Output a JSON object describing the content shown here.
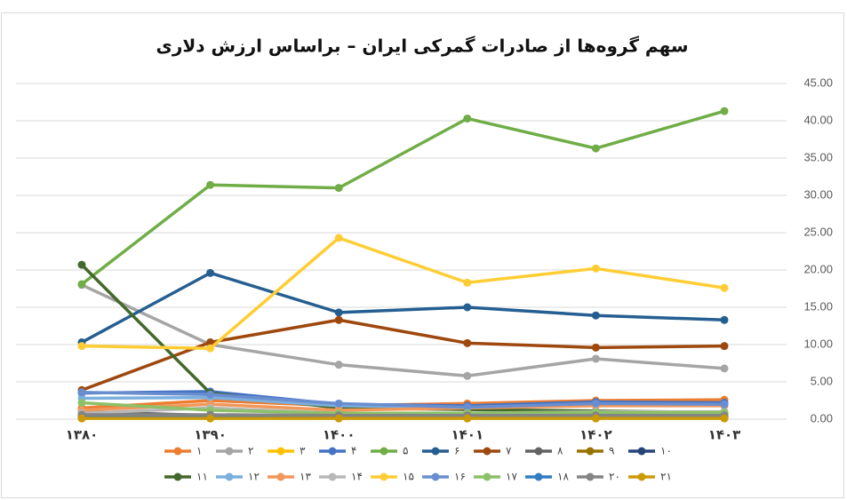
{
  "chart_data": {
    "type": "line",
    "title": "سهم گروه‌ها از صادرات گمرکی ایران – براساس ارزش دلاری",
    "categories": [
      "۱۳۸۰",
      "۱۳۹۰",
      "۱۴۰۰",
      "۱۴۰۱",
      "۱۴۰۲",
      "۱۴۰۳"
    ],
    "ylim": [
      0,
      45
    ],
    "yticks": [
      {
        "value": 0,
        "label": "0.00"
      },
      {
        "value": 5,
        "label": "5.00"
      },
      {
        "value": 10,
        "label": "10.00"
      },
      {
        "value": 15,
        "label": "15.00"
      },
      {
        "value": 20,
        "label": "20.00"
      },
      {
        "value": 25,
        "label": "25.00"
      },
      {
        "value": 30,
        "label": "30.00"
      },
      {
        "value": 35,
        "label": "35.00"
      },
      {
        "value": 40,
        "label": "40.00"
      },
      {
        "value": 45,
        "label": "45.00"
      }
    ],
    "grid": true,
    "series": [
      {
        "name": "۱",
        "color": "#ED7D31",
        "values": [
          1.5,
          2.5,
          1.8,
          2.1,
          2.5,
          2.6
        ]
      },
      {
        "name": "۲",
        "color": "#A5A5A5",
        "values": [
          18.0,
          10.0,
          7.3,
          5.8,
          8.1,
          6.8
        ]
      },
      {
        "name": "۳",
        "color": "#FFC000",
        "values": [
          0.5,
          0.4,
          0.3,
          0.3,
          0.3,
          0.3
        ]
      },
      {
        "name": "۴",
        "color": "#4472C4",
        "values": [
          3.5,
          3.7,
          2.0,
          1.8,
          2.3,
          2.2
        ]
      },
      {
        "name": "۵",
        "color": "#70AD47",
        "values": [
          18.1,
          31.4,
          31.0,
          40.3,
          36.3,
          41.3
        ]
      },
      {
        "name": "۶",
        "color": "#255E91",
        "values": [
          10.3,
          19.6,
          14.3,
          15.0,
          13.9,
          13.3
        ]
      },
      {
        "name": "۷",
        "color": "#9E480E",
        "values": [
          3.9,
          10.3,
          13.3,
          10.2,
          9.6,
          9.8
        ]
      },
      {
        "name": "۸",
        "color": "#636363",
        "values": [
          1.0,
          0.5,
          0.5,
          0.5,
          0.6,
          0.6
        ]
      },
      {
        "name": "۹",
        "color": "#997300",
        "values": [
          0.2,
          0.2,
          0.2,
          0.2,
          0.2,
          0.2
        ]
      },
      {
        "name": "۱۰",
        "color": "#264478",
        "values": [
          0.3,
          0.3,
          0.2,
          0.2,
          0.2,
          0.2
        ]
      },
      {
        "name": "۱۱",
        "color": "#43682B",
        "values": [
          20.7,
          3.5,
          1.5,
          1.3,
          1.1,
          0.9
        ]
      },
      {
        "name": "۱۲",
        "color": "#7CAFDD",
        "values": [
          2.8,
          2.9,
          1.8,
          1.6,
          1.9,
          1.9
        ]
      },
      {
        "name": "۱۳",
        "color": "#F1975A",
        "values": [
          1.2,
          2.0,
          1.2,
          1.5,
          1.8,
          1.8
        ]
      },
      {
        "name": "۱۴",
        "color": "#B7B7B7",
        "values": [
          0.8,
          1.5,
          0.8,
          0.8,
          1.0,
          1.0
        ]
      },
      {
        "name": "۱۵",
        "color": "#FFCD33",
        "values": [
          9.8,
          9.5,
          24.3,
          18.3,
          20.2,
          17.6
        ]
      },
      {
        "name": "۱۶",
        "color": "#698ED0",
        "values": [
          3.6,
          3.3,
          2.1,
          1.6,
          2.1,
          2.0
        ]
      },
      {
        "name": "۱۷",
        "color": "#8CC168",
        "values": [
          2.2,
          1.2,
          0.8,
          0.8,
          0.9,
          0.9
        ]
      },
      {
        "name": "۱۸",
        "color": "#327DC2",
        "values": [
          0.5,
          0.5,
          0.4,
          0.4,
          0.4,
          0.4
        ]
      },
      {
        "name": "۲۰",
        "color": "#848484",
        "values": [
          0.6,
          0.6,
          0.5,
          0.5,
          0.5,
          0.5
        ]
      },
      {
        "name": "۲۱",
        "color": "#CC9A06",
        "values": [
          0.1,
          0.1,
          0.1,
          0.1,
          0.1,
          0.1
        ]
      }
    ]
  }
}
